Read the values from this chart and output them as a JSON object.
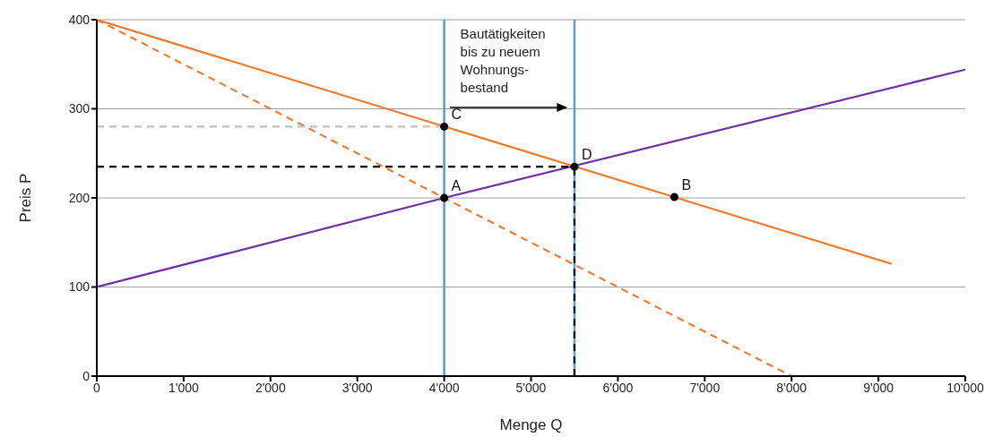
{
  "chart_data": {
    "type": "line",
    "xlabel": "Menge Q",
    "ylabel": "Preis P",
    "xlim": [
      0,
      10000
    ],
    "ylim": [
      0,
      400
    ],
    "xticks": [
      0,
      {
        "value": 1000,
        "label": "1'000"
      },
      {
        "value": 2000,
        "label": "2'000"
      },
      {
        "value": 3000,
        "label": "3'000"
      },
      {
        "value": 4000,
        "label": "4'000"
      },
      {
        "value": 5000,
        "label": "5'000"
      },
      {
        "value": 6000,
        "label": "6'000"
      },
      {
        "value": 7000,
        "label": "7'000"
      },
      {
        "value": 8000,
        "label": "8'000"
      },
      {
        "value": 9000,
        "label": "9'000"
      },
      {
        "value": 10000,
        "label": "10'000"
      }
    ],
    "yticks": [
      0,
      100,
      200,
      300,
      400
    ],
    "grid": "y",
    "series": [
      {
        "color": "#ed7d31",
        "x": [
          0,
          9150
        ],
        "values": [
          400,
          126
        ]
      },
      {
        "color": "#ed7d31",
        "x": [
          0,
          8000
        ],
        "values": [
          400,
          0
        ],
        "line_style": "dashed"
      },
      {
        "color": "#7030a0",
        "x": [
          0,
          4000,
          10000
        ],
        "values": [
          100,
          200,
          344
        ]
      },
      {
        "color": "#bfbfbf",
        "x": [
          0,
          4000
        ],
        "values": [
          280,
          280
        ],
        "line_style": "dashed"
      },
      {
        "color": "#000000",
        "x": [
          0,
          5500
        ],
        "values": [
          235,
          235
        ],
        "line_style": "dashed"
      },
      {
        "color": "#000000",
        "x": [
          5500,
          5500
        ],
        "values": [
          0,
          235
        ],
        "line_style": "dashed"
      },
      {
        "type": "scatter",
        "color": "#000000",
        "x": [
          4000,
          6650,
          4000,
          5500
        ],
        "values": [
          200,
          201,
          280,
          235
        ]
      }
    ],
    "ref_lines": [
      {
        "axis": "x",
        "value": 4000,
        "color": "#5b9bd5"
      },
      {
        "axis": "x",
        "value": 5500,
        "color": "#5b9bd5"
      }
    ],
    "annotations": [
      {
        "text": "A",
        "x": 4000,
        "y": 200
      },
      {
        "text": "B",
        "x": 6650,
        "y": 201
      },
      {
        "text": "C",
        "x": 4000,
        "y": 280
      },
      {
        "text": "D",
        "x": 5500,
        "y": 235
      },
      "Bautätigkeiten\nbis zu neuem\nWohnungs-\nbestand"
    ]
  }
}
